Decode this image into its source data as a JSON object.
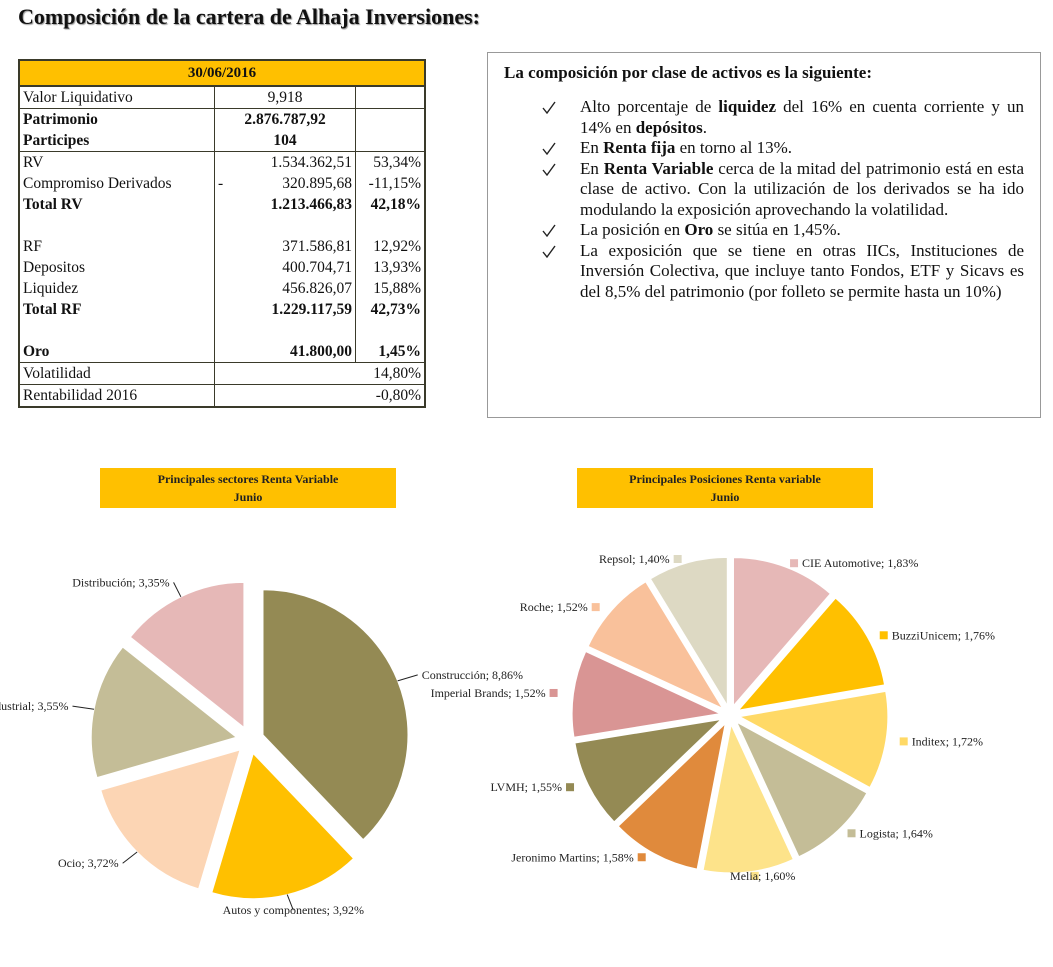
{
  "title": "Composición de la cartera de Alhaja Inversiones:",
  "table": {
    "header": "30/06/2016",
    "groups": [
      [
        {
          "label": "Valor Liquidativo",
          "amount": "9,918"
        }
      ],
      [
        {
          "label": "Patrimonio",
          "amount": "2.876.787,92",
          "bold": true
        },
        {
          "label": "Participes",
          "amount": "104",
          "bold": true
        }
      ],
      [
        {
          "label": "RV",
          "amount": "1.534.362,51",
          "pct": "53,34%"
        },
        {
          "label": "Compromiso Derivados",
          "amount_sign": "-",
          "amount": "320.895,68",
          "pct": "-11,15%"
        },
        {
          "label": "Total RV",
          "amount": "1.213.466,83",
          "pct": "42,18%",
          "bold": true
        },
        {},
        {
          "label": "RF",
          "amount": "371.586,81",
          "pct": "12,92%"
        },
        {
          "label": "Depositos",
          "amount": "400.704,71",
          "pct": "13,93%"
        },
        {
          "label": "Liquidez",
          "amount": "456.826,07",
          "pct": "15,88%"
        },
        {
          "label": "Total RF",
          "amount": "1.229.117,59",
          "pct": "42,73%",
          "bold": true
        },
        {},
        {
          "label": "Oro",
          "amount": "41.800,00",
          "pct": "1,45%",
          "bold": true
        }
      ],
      [
        {
          "label": "Volatilidad",
          "pct": "14,80%"
        }
      ],
      [
        {
          "label": "Rentabilidad 2016",
          "pct": "-0,80%"
        }
      ]
    ]
  },
  "summary": {
    "heading": "La composición por clase de activos es la siguiente:",
    "bullets": [
      [
        {
          "text": "Alto porcentaje de "
        },
        {
          "text": "liquidez",
          "bold": true
        },
        {
          "text": " del 16% en cuenta corriente y un 14% en "
        },
        {
          "text": "depósitos",
          "bold": true
        },
        {
          "text": "."
        }
      ],
      [
        {
          "text": "En "
        },
        {
          "text": "Renta fija",
          "bold": true
        },
        {
          "text": " en torno al 13%."
        }
      ],
      [
        {
          "text": "En "
        },
        {
          "text": "Renta Variable",
          "bold": true
        },
        {
          "text": " cerca de la mitad del patrimonio está en esta clase de activo. Con la utilización de los derivados se ha ido modulando la exposición aprovechando la volatilidad."
        }
      ],
      [
        {
          "text": "La posición en "
        },
        {
          "text": "Oro",
          "bold": true
        },
        {
          "text": " se sitúa en 1,45%."
        }
      ],
      [
        {
          "text": "La exposición que se tiene en otras IICs, Instituciones de Inversión Colectiva, que incluye tanto Fondos, ETF y Sicavs es del 8,5% del patrimonio (por folleto se permite hasta un 10%)"
        }
      ]
    ]
  },
  "chart_data": [
    {
      "type": "pie",
      "title": "Principales sectores Renta Variable",
      "subtitle": "Junio",
      "categories": [
        "Construcción",
        "Autos y componentes",
        "Ocio",
        "Industrial",
        "Distribución"
      ],
      "values": [
        8.86,
        3.92,
        3.72,
        3.55,
        3.35
      ],
      "value_labels": [
        "8,86%",
        "3,92%",
        "3,72%",
        "3,55%",
        "3,35%"
      ],
      "label_separator": "; ",
      "colors": [
        "#948a54",
        "#ffc000",
        "#fcd5b4",
        "#c4bd97",
        "#e6b8b7"
      ]
    },
    {
      "type": "pie",
      "title": "Principales Posiciones Renta variable",
      "subtitle": "Junio",
      "categories": [
        "CIE Automotive",
        "BuzziUnicem",
        "Inditex",
        "Logista",
        "Melia",
        "Jeronimo Martins",
        "LVMH",
        "Imperial Brands",
        "Roche",
        "Repsol"
      ],
      "values": [
        1.83,
        1.76,
        1.72,
        1.64,
        1.6,
        1.58,
        1.55,
        1.52,
        1.52,
        1.4
      ],
      "value_labels": [
        "1,83%",
        "1,76%",
        "1,72%",
        "1,64%",
        "1,60%",
        "1,58%",
        "1,55%",
        "1,52%",
        "1,52%",
        "1,40%"
      ],
      "label_separator": "; ",
      "legend_keys": true,
      "colors": [
        "#e6b8b7",
        "#ffc000",
        "#ffd966",
        "#c4bd97",
        "#fde38a",
        "#e08a3c",
        "#948a54",
        "#d99594",
        "#f9c19b",
        "#ddd9c3"
      ]
    }
  ]
}
